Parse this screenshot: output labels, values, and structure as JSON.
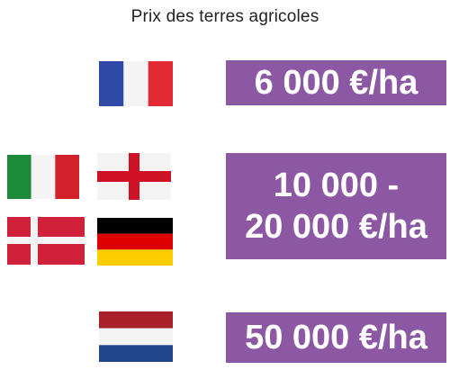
{
  "title": "Prix des terres agricoles",
  "groups": [
    {
      "price": "6 000 €/ha",
      "flags": [
        "france-flag-icon"
      ]
    },
    {
      "price_line1": "10 000 -",
      "price_line2": "20 000 €/ha",
      "flags": [
        "italy-flag-icon",
        "england-flag-icon",
        "denmark-flag-icon",
        "germany-flag-icon"
      ]
    },
    {
      "price": "50 000 €/ha",
      "flags": [
        "netherlands-flag-icon"
      ]
    }
  ],
  "colors": {
    "price_box": "#8c58a3",
    "price_text": "#ffffff",
    "fr_blue": "#2e4aa6",
    "fr_red": "#e12a34",
    "it_green": "#1d8a3a",
    "it_red": "#d3212b",
    "en_red": "#ce1124",
    "dk_red": "#d0203a",
    "de_black": "#000000",
    "de_red": "#dd0000",
    "de_gold": "#ffce00",
    "nl_red": "#a8202a",
    "nl_blue": "#21468b"
  }
}
